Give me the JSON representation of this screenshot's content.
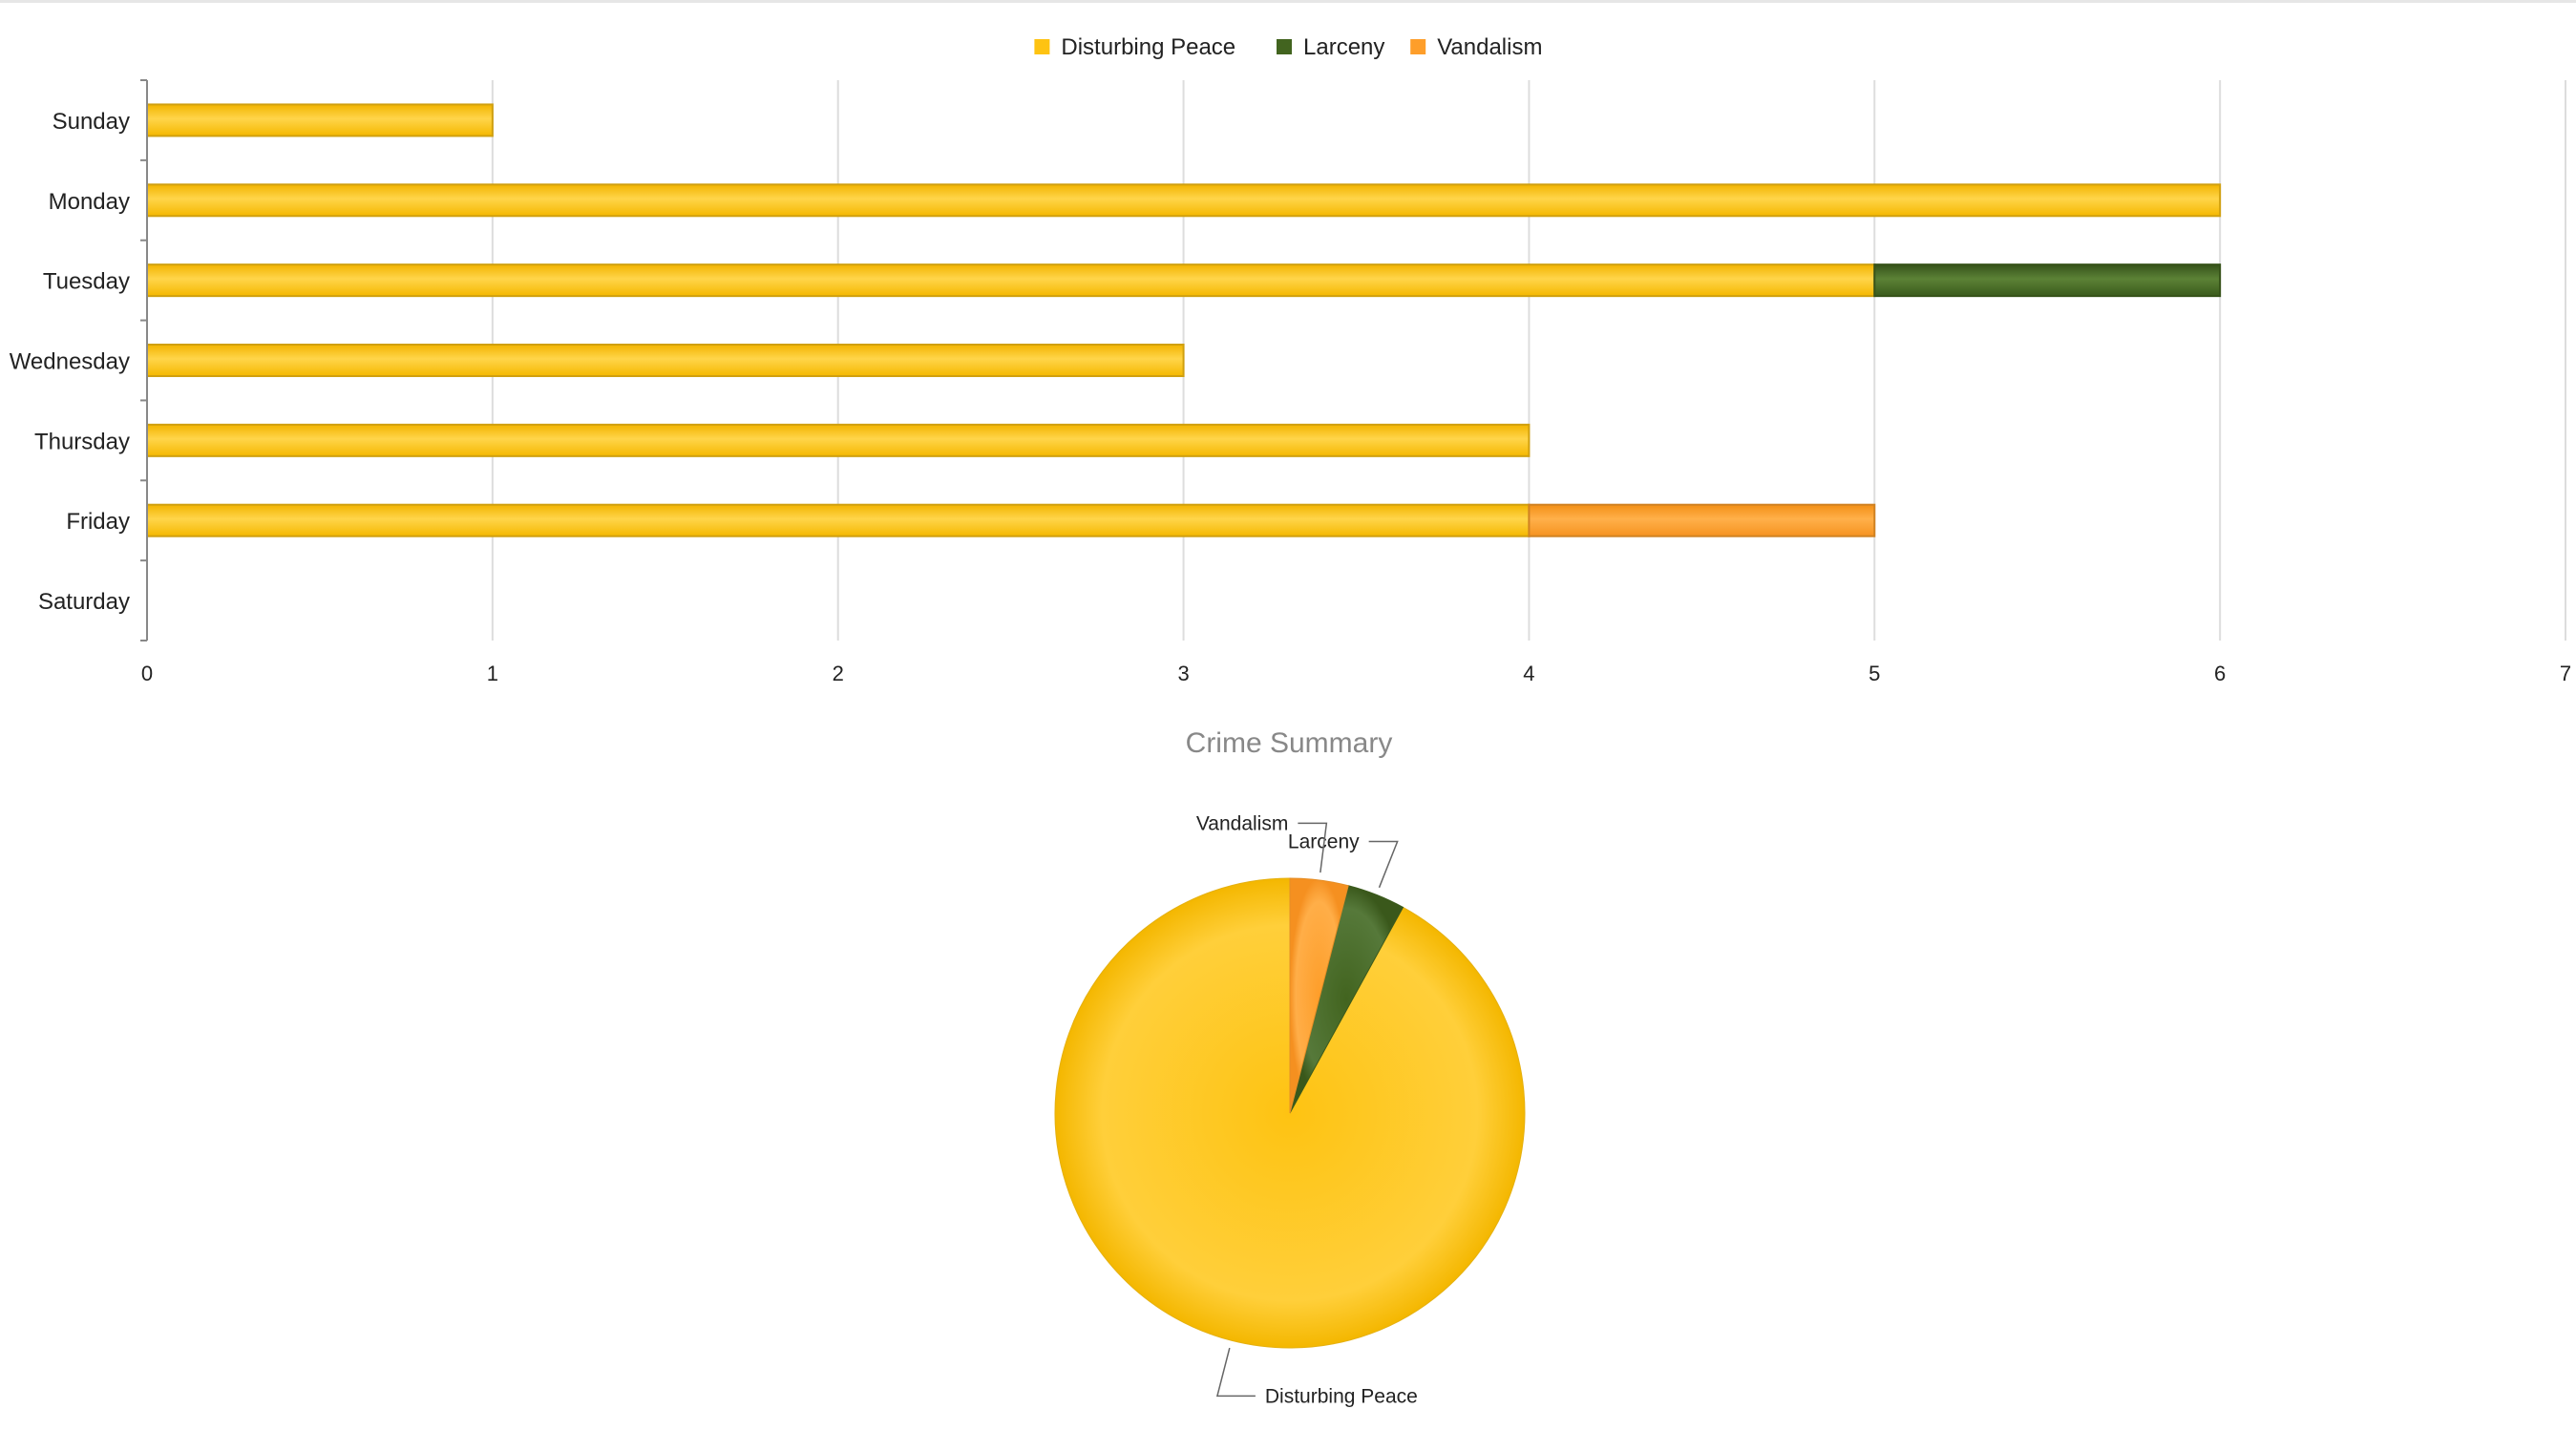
{
  "colors": {
    "Disturbing Peace": "#FEC312",
    "Larceny": "#42641F",
    "Vandalism": "#FE9E2A",
    "grid": "#DDDDDD",
    "axis": "#888888",
    "title": "#888888"
  },
  "chart_data": [
    {
      "type": "bar",
      "orientation": "horizontal",
      "stacked": true,
      "title": "",
      "xlabel": "",
      "ylabel": "",
      "categories": [
        "Sunday",
        "Monday",
        "Tuesday",
        "Wednesday",
        "Thursday",
        "Friday",
        "Saturday"
      ],
      "series": [
        {
          "name": "Disturbing Peace",
          "values": [
            1,
            6,
            5,
            3,
            4,
            4,
            0
          ]
        },
        {
          "name": "Larceny",
          "values": [
            0,
            0,
            1,
            0,
            0,
            0,
            0
          ]
        },
        {
          "name": "Vandalism",
          "values": [
            0,
            0,
            0,
            0,
            0,
            1,
            0
          ]
        }
      ],
      "xlim": [
        0,
        7
      ],
      "xticks": [
        "0",
        "1",
        "2",
        "3",
        "4",
        "5",
        "6",
        "7"
      ],
      "grid": true,
      "legend": "top-center"
    },
    {
      "type": "pie",
      "title": "Crime Summary",
      "labels": [
        "Disturbing Peace",
        "Larceny",
        "Vandalism"
      ],
      "values": [
        23,
        1,
        1
      ],
      "legend": "none"
    }
  ]
}
